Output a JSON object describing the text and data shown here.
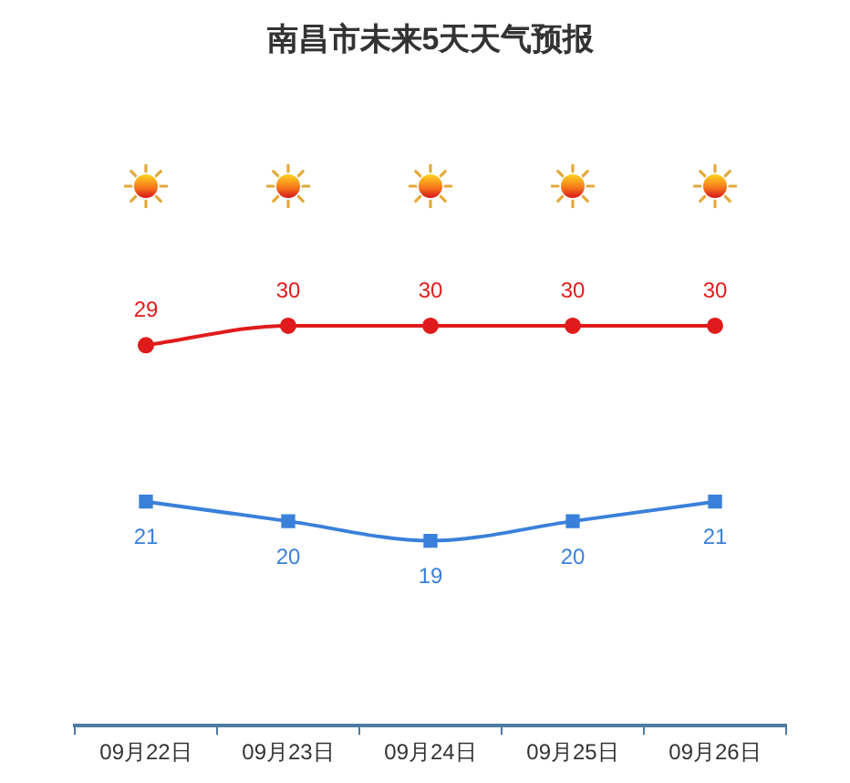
{
  "chart_data": {
    "type": "line",
    "title": "南昌市未来5天天气预报",
    "categories": [
      "09月22日",
      "09月23日",
      "09月24日",
      "09月25日",
      "09月26日"
    ],
    "series": [
      {
        "color": "#e01b1b",
        "values": [
          29,
          30,
          30,
          30,
          30
        ],
        "marker": "circle"
      },
      {
        "color": "#3a80da",
        "values": [
          21,
          20,
          19,
          20,
          21
        ],
        "marker": "square"
      }
    ],
    "data_labels": true,
    "grid": false,
    "legend": false,
    "line_style": "solid"
  }
}
